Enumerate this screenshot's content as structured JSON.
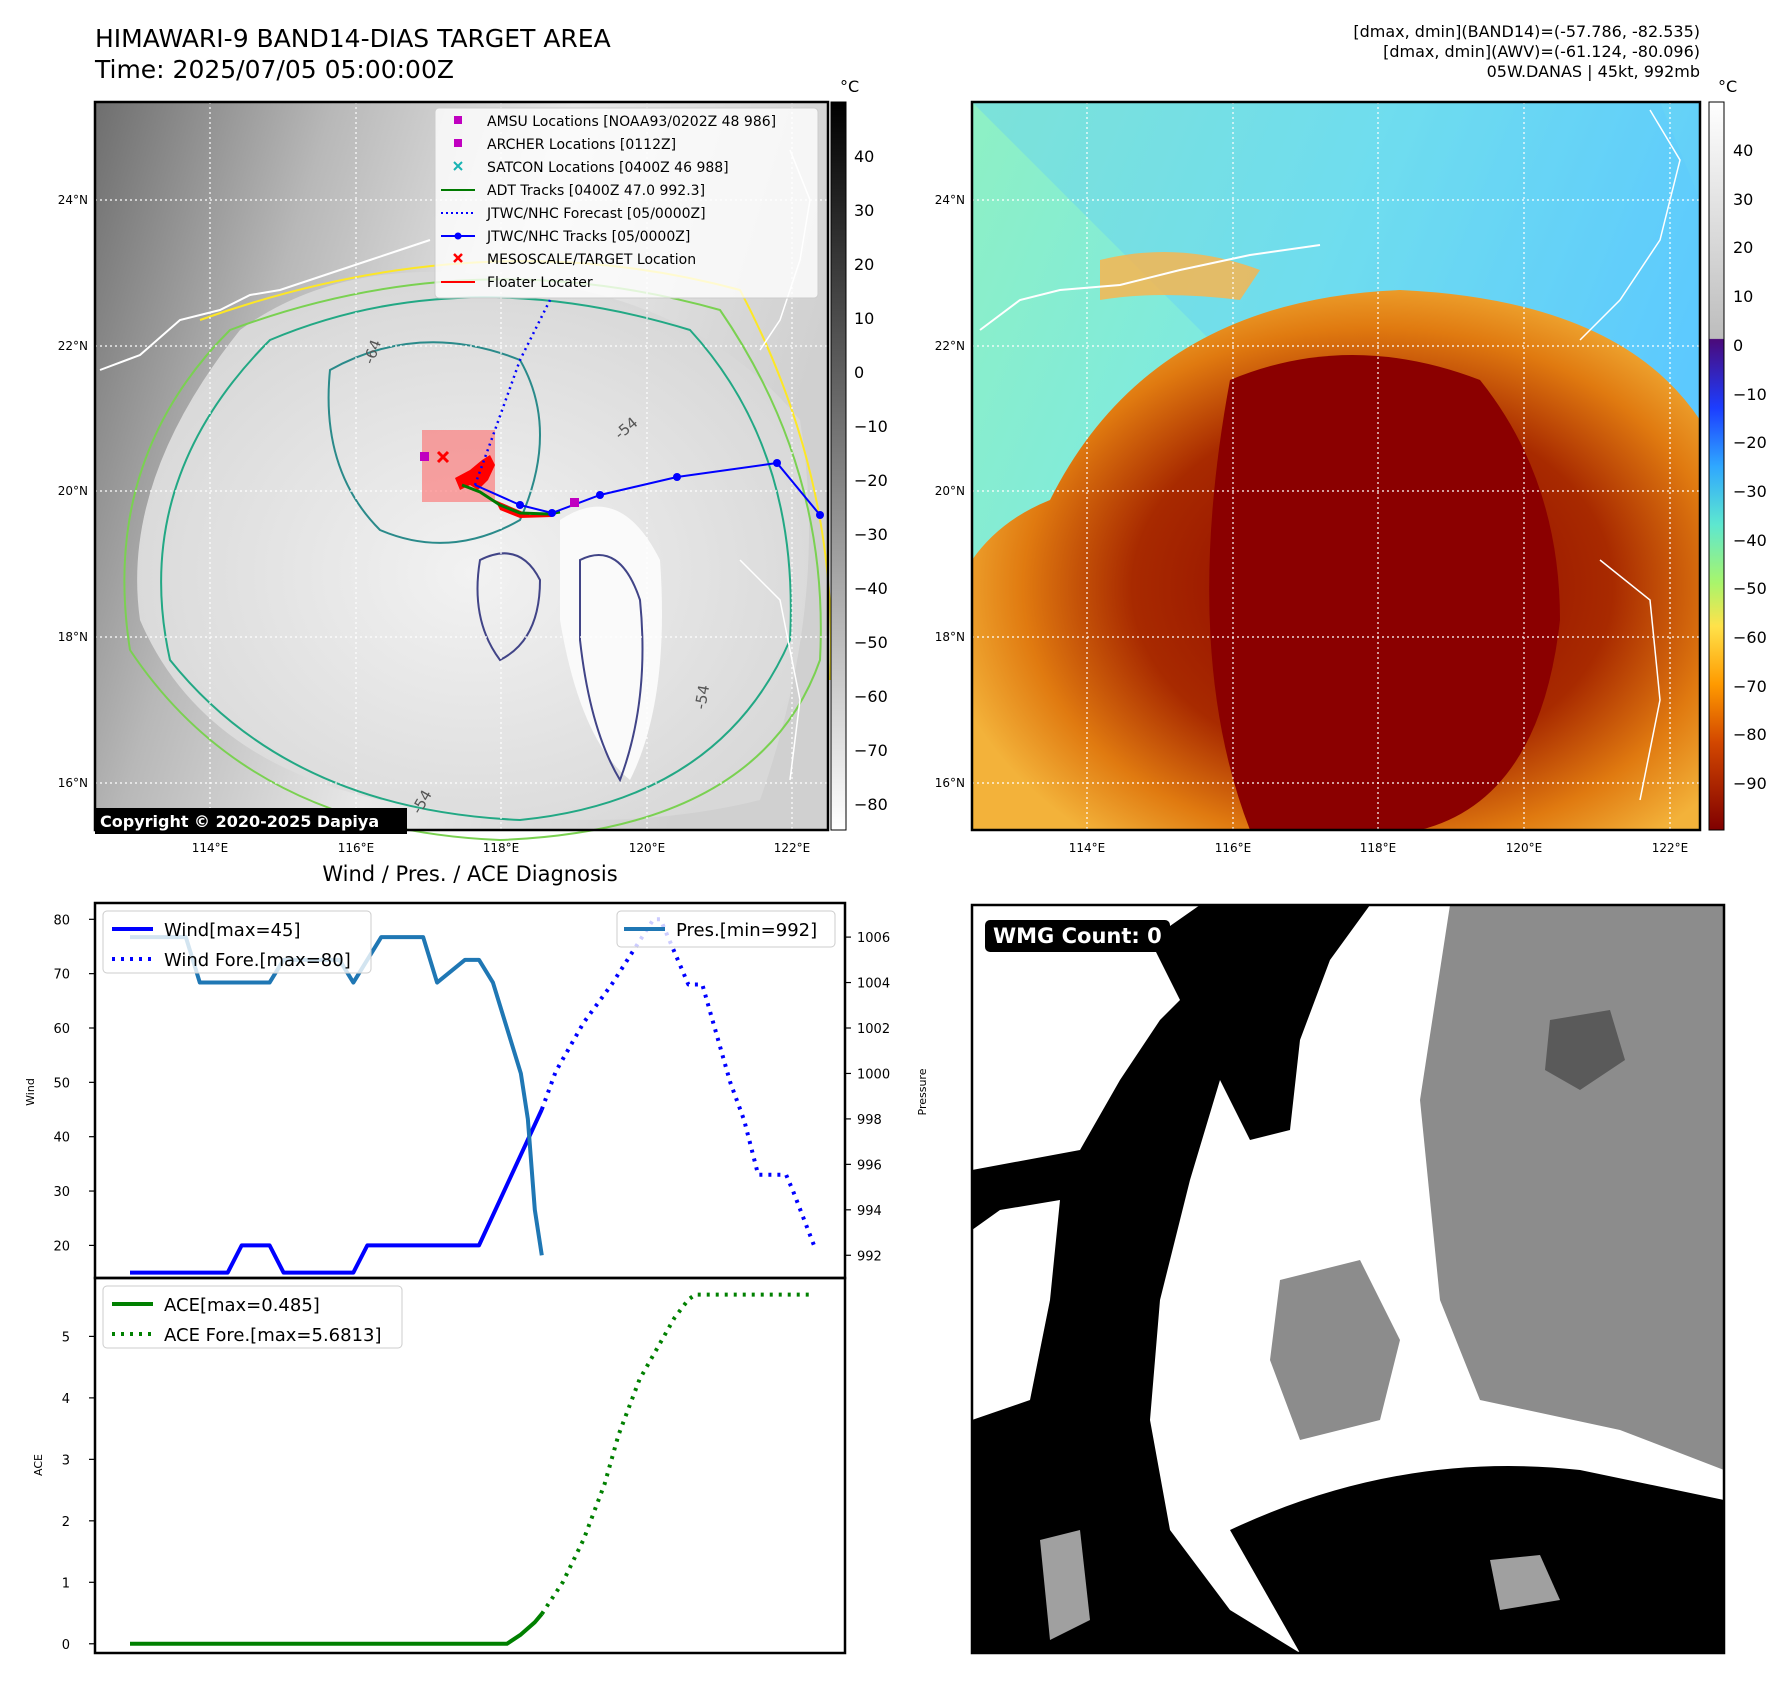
{
  "header": {
    "title_line1": "HIMAWARI-9 BAND14-DIAS TARGET AREA",
    "title_line2": "Time: 2025/07/05 05:00:00Z",
    "info_line1": "[dmax, dmin](BAND14)=(-57.786, -82.535)",
    "info_line2": "[dmax, dmin](AWV)=(-61.124, -80.096)",
    "info_line3": "05W.DANAS | 45kt, 992mb"
  },
  "map_axes": {
    "lat_labels": [
      "24°N",
      "22°N",
      "20°N",
      "18°N",
      "16°N"
    ],
    "lon_labels": [
      "114°E",
      "116°E",
      "118°E",
      "120°E",
      "122°E"
    ],
    "copyright": "Copyright © 2020-2025 Dapiya"
  },
  "colorbar_left": {
    "unit": "°C",
    "ticks": [
      "40",
      "30",
      "20",
      "10",
      "0",
      "−10",
      "−20",
      "−30",
      "−40",
      "−50",
      "−60",
      "−70",
      "−80"
    ]
  },
  "colorbar_right": {
    "unit": "°C",
    "ticks": [
      "40",
      "30",
      "20",
      "10",
      "0",
      "−10",
      "−20",
      "−30",
      "−40",
      "−50",
      "−60",
      "−70",
      "−80",
      "−90"
    ]
  },
  "legend_map": [
    {
      "label": "AMSU Locations [NOAA93/0202Z 48 986]",
      "marker": "square",
      "color": "#c000c0"
    },
    {
      "label": "ARCHER Locations [0112Z]",
      "marker": "square",
      "color": "#c000c0"
    },
    {
      "label": "SATCON Locations [0400Z 46 988]",
      "marker": "x",
      "color": "#17b3b3"
    },
    {
      "label": "ADT Tracks [0400Z 47.0 992.3]",
      "marker": "line",
      "color": "#007a00"
    },
    {
      "label": "JTWC/NHC Forecast [05/0000Z]",
      "marker": "dotted",
      "color": "#0000ff"
    },
    {
      "label": "JTWC/NHC Tracks [05/0000Z]",
      "marker": "line-dot",
      "color": "#0000ff"
    },
    {
      "label": "MESOSCALE/TARGET Location",
      "marker": "x",
      "color": "#ff0000"
    },
    {
      "label": "Floater Locater",
      "marker": "line",
      "color": "#ff0000"
    }
  ],
  "contour_labels": [
    "-64",
    "-54",
    "-54",
    "-54"
  ],
  "wmg_label": "WMG Count: 0",
  "chart_data": [
    {
      "type": "line",
      "title": "Wind / Pres. / ACE Diagnosis",
      "ylabel": "Wind",
      "ylabel_right": "Pressure",
      "ylim": [
        14,
        83
      ],
      "ylim_right": [
        991,
        1007.5
      ],
      "yticks": [
        20,
        30,
        40,
        50,
        60,
        70,
        80
      ],
      "yticks_right": [
        992,
        994,
        996,
        998,
        1000,
        1002,
        1004,
        1006
      ],
      "legend_left": [
        "Wind[max=45]",
        "Wind Fore.[max=80]"
      ],
      "legend_right": [
        "Pres.[min=992]"
      ],
      "series": [
        {
          "name": "Wind[max=45]",
          "style": "solid",
          "color": "#0000ff",
          "x": [
            0,
            14,
            16,
            20,
            22,
            32,
            34,
            50,
            59
          ],
          "values": [
            15,
            15,
            20,
            20,
            15,
            15,
            20,
            20,
            45
          ]
        },
        {
          "name": "Wind Fore.[max=80]",
          "style": "dotted",
          "color": "#0000ff",
          "x": [
            59,
            61,
            65,
            69,
            73,
            75,
            76,
            80,
            82,
            86,
            88,
            90,
            94,
            95,
            98
          ],
          "values": [
            45,
            52,
            61,
            68,
            76,
            80,
            80,
            68,
            68,
            50,
            43,
            33,
            33,
            30,
            20
          ]
        },
        {
          "name": "Pres.[min=992]",
          "style": "solid",
          "color": "#1f77b4",
          "axis": "right",
          "x": [
            0,
            8,
            10,
            20,
            22,
            30,
            32,
            36,
            42,
            44,
            48,
            50,
            52,
            56,
            57,
            58,
            59
          ],
          "values": [
            1006,
            1006,
            1004,
            1004,
            1005,
            1005,
            1004,
            1006,
            1006,
            1004,
            1005,
            1005,
            1004,
            1000,
            998,
            994,
            992
          ]
        }
      ]
    },
    {
      "type": "line",
      "ylabel": "ACE",
      "ylim": [
        -0.15,
        5.95
      ],
      "yticks": [
        0,
        1,
        2,
        3,
        4,
        5
      ],
      "legend": [
        "ACE[max=0.485]",
        "ACE Fore.[max=5.6813]"
      ],
      "series": [
        {
          "name": "ACE[max=0.485]",
          "style": "solid",
          "color": "#008000",
          "x": [
            0,
            54,
            56,
            58,
            59
          ],
          "values": [
            0,
            0,
            0.15,
            0.35,
            0.485
          ]
        },
        {
          "name": "ACE Fore.[max=5.6813]",
          "style": "dotted",
          "color": "#008000",
          "x": [
            59,
            62,
            65,
            68,
            70,
            73,
            76,
            78,
            80,
            81,
            82,
            98
          ],
          "values": [
            0.485,
            1.0,
            1.7,
            2.6,
            3.4,
            4.3,
            4.9,
            5.3,
            5.6,
            5.68,
            5.68,
            5.68
          ]
        }
      ]
    }
  ]
}
